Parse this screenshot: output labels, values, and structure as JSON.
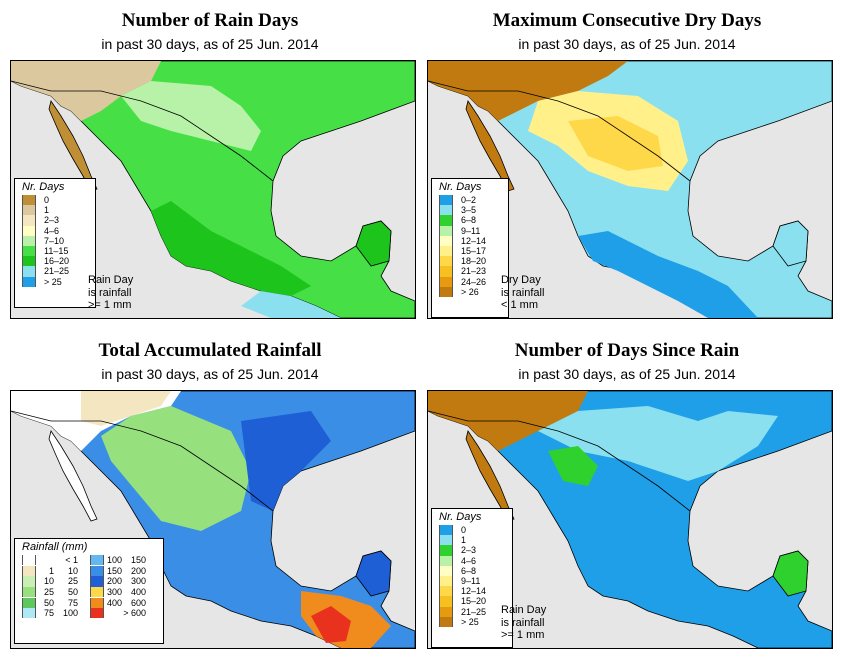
{
  "panels": [
    {
      "title": "Number of Rain Days",
      "subtitle": "in past 30 days, as of  25 Jun. 2014",
      "legend_title": "Nr. Days",
      "legend": [
        {
          "label": "0",
          "color": "#c08f35"
        },
        {
          "label": "1",
          "color": "#dcc89f"
        },
        {
          "label": "2–3",
          "color": "#f5e6c2"
        },
        {
          "label": "4–6",
          "color": "#ffffc4"
        },
        {
          "label": "7–10",
          "color": "#b8f2a8"
        },
        {
          "label": "11–15",
          "color": "#46e046"
        },
        {
          "label": "16–20",
          "color": "#1cc41c"
        },
        {
          "label": "21–25",
          "color": "#8be0f0"
        },
        {
          "label": "> 25",
          "color": "#1e9fe8"
        }
      ],
      "note": [
        "Rain Day",
        "is rainfall",
        ">= 1 mm"
      ]
    },
    {
      "title": "Maximum Consecutive Dry Days",
      "subtitle": "in past 30 days, as of  25 Jun. 2014",
      "legend_title": "Nr. Days",
      "legend": [
        {
          "label": "0–2",
          "color": "#1e9fe8"
        },
        {
          "label": "3–5",
          "color": "#8be0f0"
        },
        {
          "label": "6–8",
          "color": "#2ed12e"
        },
        {
          "label": "9–11",
          "color": "#b8f2a8"
        },
        {
          "label": "12–14",
          "color": "#ffffc4"
        },
        {
          "label": "15–17",
          "color": "#fff08a"
        },
        {
          "label": "18–20",
          "color": "#ffd84a"
        },
        {
          "label": "21–23",
          "color": "#f5c020"
        },
        {
          "label": "24–26",
          "color": "#e69a10"
        },
        {
          "label": "> 26",
          "color": "#c07a10"
        }
      ],
      "note": [
        "Dry Day",
        "is rainfall",
        "< 1 mm"
      ]
    },
    {
      "title": "Total Accumulated Rainfall",
      "subtitle": "in past 30 days, as of  25 Jun. 2014",
      "legend_title": "Rainfall (mm)",
      "legend": [
        {
          "lo": "",
          "hi": "< 1",
          "color": "#ffffff"
        },
        {
          "lo": "1",
          "hi": "10",
          "color": "#f5e6c2"
        },
        {
          "lo": "10",
          "hi": "25",
          "color": "#c8f0b4"
        },
        {
          "lo": "25",
          "hi": "50",
          "color": "#96e07e"
        },
        {
          "lo": "50",
          "hi": "75",
          "color": "#5ec85e"
        },
        {
          "lo": "75",
          "hi": "100",
          "color": "#aeeaf5"
        },
        {
          "lo": "100",
          "hi": "150",
          "color": "#64b8f0"
        },
        {
          "lo": "150",
          "hi": "200",
          "color": "#3a8ee6"
        },
        {
          "lo": "200",
          "hi": "300",
          "color": "#1e5fd6"
        },
        {
          "lo": "300",
          "hi": "400",
          "color": "#ffd84a"
        },
        {
          "lo": "400",
          "hi": "600",
          "color": "#f08c1e"
        },
        {
          "lo": "",
          "hi": "> 600",
          "color": "#e8321e"
        }
      ],
      "note": []
    },
    {
      "title": "Number of Days Since Rain",
      "subtitle": "in past 30 days, as of  25 Jun. 2014",
      "legend_title": "Nr. Days",
      "legend": [
        {
          "label": "0",
          "color": "#1e9fe8"
        },
        {
          "label": "1",
          "color": "#8be0f0"
        },
        {
          "label": "2–3",
          "color": "#2ed12e"
        },
        {
          "label": "4–6",
          "color": "#b8f2a8"
        },
        {
          "label": "6–8",
          "color": "#ffffc4"
        },
        {
          "label": "9–11",
          "color": "#fff08a"
        },
        {
          "label": "12–14",
          "color": "#ffd84a"
        },
        {
          "label": "15–20",
          "color": "#f5c020"
        },
        {
          "label": "21–25",
          "color": "#e69a10"
        },
        {
          "label": "> 25",
          "color": "#c07a10"
        }
      ],
      "note": [
        "Rain Day",
        "is rainfall",
        ">= 1 mm"
      ]
    }
  ],
  "map_colors": {
    "ocean": "#e6e6e6",
    "border": "#000000"
  }
}
